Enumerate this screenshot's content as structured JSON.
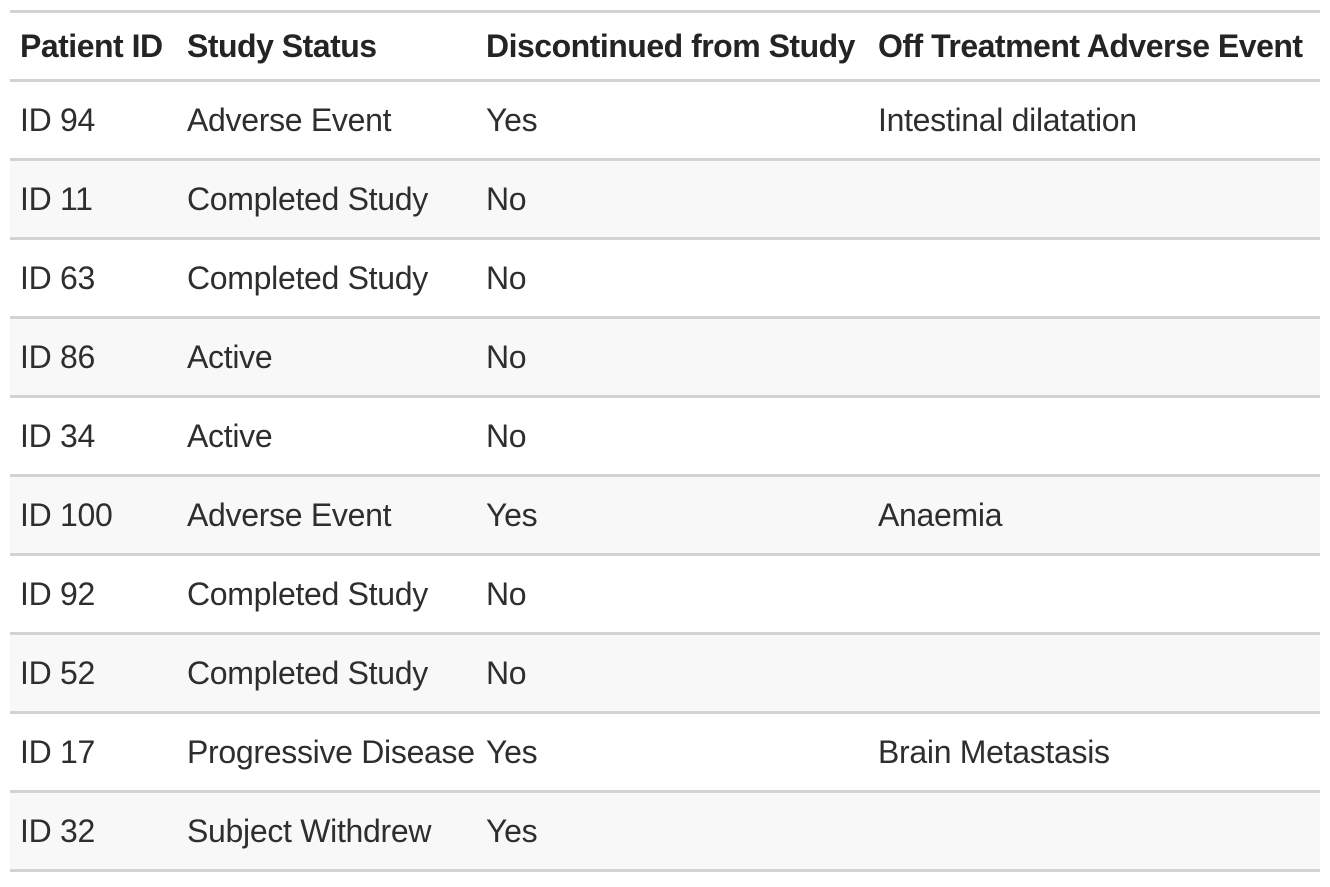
{
  "table": {
    "columns": [
      {
        "label": "Patient ID"
      },
      {
        "label": "Study Status"
      },
      {
        "label": "Discontinued from Study"
      },
      {
        "label": "Off Treatment Adverse Event"
      }
    ],
    "rows": [
      [
        "ID 94",
        "Adverse Event",
        "Yes",
        "Intestinal dilatation"
      ],
      [
        "ID 11",
        "Completed Study",
        "No",
        ""
      ],
      [
        "ID 63",
        "Completed Study",
        "No",
        ""
      ],
      [
        "ID 86",
        "Active",
        "No",
        ""
      ],
      [
        "ID 34",
        "Active",
        "No",
        ""
      ],
      [
        "ID 100",
        "Adverse Event",
        "Yes",
        "Anaemia"
      ],
      [
        "ID 92",
        "Completed Study",
        "No",
        ""
      ],
      [
        "ID 52",
        "Completed Study",
        "No",
        ""
      ],
      [
        "ID 17",
        "Progressive Disease",
        "Yes",
        "Brain Metastasis"
      ],
      [
        "ID 32",
        "Subject Withdrew",
        "Yes",
        ""
      ]
    ]
  },
  "colors": {
    "stripe": "#f8f8f8",
    "border": "#d3d3d3",
    "header_text": "#252423",
    "body_text": "#2f2e2d"
  }
}
